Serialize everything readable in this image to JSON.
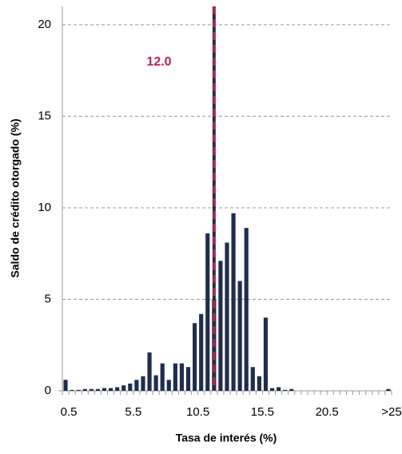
{
  "chart_data": {
    "type": "bar",
    "x_label": "Tasa de interés (%)",
    "y_label": "Saldo de crédito otorgado (%)",
    "categories": [
      "0.5",
      null,
      null,
      null,
      null,
      null,
      null,
      null,
      null,
      null,
      "5.5",
      null,
      null,
      null,
      null,
      null,
      null,
      null,
      null,
      null,
      "10.5",
      null,
      null,
      null,
      null,
      null,
      null,
      null,
      null,
      null,
      "15.5",
      null,
      null,
      null,
      null,
      null,
      null,
      null,
      null,
      null,
      "20.5",
      null,
      null,
      null,
      null,
      null,
      null,
      null,
      null,
      null,
      ">25"
    ],
    "values": [
      0.6,
      0.05,
      0.05,
      0.1,
      0.1,
      0.1,
      0.15,
      0.15,
      0.2,
      0.3,
      0.4,
      0.6,
      0.8,
      2.1,
      0.85,
      1.5,
      0.6,
      1.5,
      1.5,
      1.3,
      3.7,
      4.2,
      8.6,
      5.0,
      7.1,
      8.1,
      9.7,
      6.0,
      8.9,
      1.3,
      0.8,
      4.0,
      0.15,
      0.2,
      0.05,
      0.1,
      0,
      0,
      0,
      0,
      0,
      0,
      0,
      0,
      0,
      0,
      0,
      0,
      0,
      0,
      0.1
    ],
    "color": "#1f2d4e",
    "ylim": [
      0,
      21
    ],
    "yticks": [
      0,
      5,
      10,
      15,
      20
    ],
    "grid": true,
    "reference_line": {
      "value": 12,
      "label": "12.0",
      "color": "#c0224a",
      "category_index": 23
    }
  }
}
